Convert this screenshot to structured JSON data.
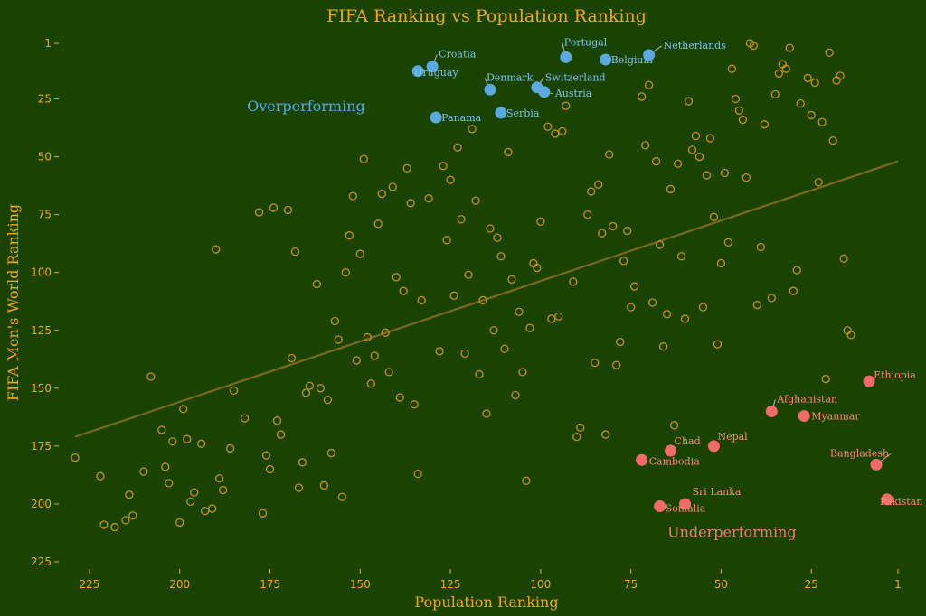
{
  "chart_data": {
    "type": "scatter",
    "title": "FIFA Ranking vs Population Ranking",
    "xlabel": "Population Ranking",
    "ylabel": "FIFA Men's World Ranking",
    "xlim": [
      234,
      -1
    ],
    "ylim": [
      -2,
      228
    ],
    "x_ticks": [
      225,
      200,
      175,
      150,
      125,
      100,
      75,
      50,
      25,
      1
    ],
    "y_ticks": [
      1,
      25,
      50,
      75,
      100,
      125,
      150,
      175,
      200,
      225
    ],
    "trendline": [
      [
        229,
        171
      ],
      [
        1,
        52
      ]
    ],
    "annotations": [
      {
        "text": "Overperforming",
        "x": 165,
        "y": 28,
        "group": "over"
      },
      {
        "text": "Underperforming",
        "x": 47,
        "y": 212,
        "group": "under"
      }
    ],
    "highlighted": [
      {
        "name": "Croatia",
        "x": 130,
        "y": 11,
        "group": "over"
      },
      {
        "name": "Uruguay",
        "x": 134,
        "y": 13,
        "group": "over"
      },
      {
        "name": "Portugal",
        "x": 93,
        "y": 7,
        "group": "over"
      },
      {
        "name": "Belgium",
        "x": 82,
        "y": 8,
        "group": "over"
      },
      {
        "name": "Netherlands",
        "x": 70,
        "y": 6,
        "group": "over"
      },
      {
        "name": "Denmark",
        "x": 114,
        "y": 21,
        "group": "over"
      },
      {
        "name": "Switzerland",
        "x": 101,
        "y": 20,
        "group": "over"
      },
      {
        "name": "Austria",
        "x": 99,
        "y": 22,
        "group": "over"
      },
      {
        "name": "Serbia",
        "x": 111,
        "y": 31,
        "group": "over"
      },
      {
        "name": "Panama",
        "x": 129,
        "y": 33,
        "group": "over"
      },
      {
        "name": "Ethiopia",
        "x": 9,
        "y": 147,
        "group": "under"
      },
      {
        "name": "Afghanistan",
        "x": 36,
        "y": 160,
        "group": "under"
      },
      {
        "name": "Myanmar",
        "x": 27,
        "y": 162,
        "group": "under"
      },
      {
        "name": "Nepal",
        "x": 52,
        "y": 175,
        "group": "under"
      },
      {
        "name": "Chad",
        "x": 64,
        "y": 177,
        "group": "under"
      },
      {
        "name": "Cambodia",
        "x": 72,
        "y": 181,
        "group": "under"
      },
      {
        "name": "Bangladesh",
        "x": 7,
        "y": 183,
        "group": "under"
      },
      {
        "name": "Sri Lanka",
        "x": 60,
        "y": 200,
        "group": "under"
      },
      {
        "name": "Somalia",
        "x": 67,
        "y": 201,
        "group": "under"
      },
      {
        "name": "Pakistan",
        "x": 4,
        "y": 198,
        "group": "under"
      }
    ],
    "points": [
      [
        229,
        180
      ],
      [
        222,
        188
      ],
      [
        221,
        209
      ],
      [
        218,
        210
      ],
      [
        215,
        207
      ],
      [
        214,
        196
      ],
      [
        213,
        205
      ],
      [
        210,
        186
      ],
      [
        208,
        145
      ],
      [
        205,
        168
      ],
      [
        204,
        184
      ],
      [
        203,
        191
      ],
      [
        202,
        173
      ],
      [
        200,
        208
      ],
      [
        199,
        159
      ],
      [
        198,
        172
      ],
      [
        197,
        199
      ],
      [
        196,
        195
      ],
      [
        194,
        174
      ],
      [
        193,
        203
      ],
      [
        191,
        202
      ],
      [
        190,
        90
      ],
      [
        189,
        189
      ],
      [
        188,
        194
      ],
      [
        186,
        176
      ],
      [
        185,
        151
      ],
      [
        182,
        163
      ],
      [
        178,
        74
      ],
      [
        177,
        204
      ],
      [
        176,
        179
      ],
      [
        175,
        185
      ],
      [
        174,
        72
      ],
      [
        173,
        164
      ],
      [
        172,
        170
      ],
      [
        170,
        73
      ],
      [
        169,
        137
      ],
      [
        168,
        91
      ],
      [
        167,
        193
      ],
      [
        166,
        182
      ],
      [
        165,
        152
      ],
      [
        164,
        149
      ],
      [
        162,
        105
      ],
      [
        161,
        150
      ],
      [
        160,
        192
      ],
      [
        159,
        155
      ],
      [
        158,
        178
      ],
      [
        157,
        121
      ],
      [
        156,
        129
      ],
      [
        155,
        197
      ],
      [
        154,
        100
      ],
      [
        153,
        84
      ],
      [
        152,
        67
      ],
      [
        151,
        138
      ],
      [
        150,
        92
      ],
      [
        149,
        51
      ],
      [
        148,
        128
      ],
      [
        147,
        148
      ],
      [
        146,
        136
      ],
      [
        145,
        79
      ],
      [
        144,
        66
      ],
      [
        143,
        126
      ],
      [
        142,
        143
      ],
      [
        141,
        63
      ],
      [
        140,
        102
      ],
      [
        139,
        154
      ],
      [
        138,
        108
      ],
      [
        137,
        55
      ],
      [
        136,
        70
      ],
      [
        135,
        157
      ],
      [
        134,
        187
      ],
      [
        133,
        112
      ],
      [
        131,
        68
      ],
      [
        128,
        134
      ],
      [
        127,
        54
      ],
      [
        126,
        86
      ],
      [
        125,
        60
      ],
      [
        124,
        110
      ],
      [
        123,
        46
      ],
      [
        122,
        77
      ],
      [
        121,
        135
      ],
      [
        120,
        101
      ],
      [
        119,
        38
      ],
      [
        118,
        69
      ],
      [
        117,
        144
      ],
      [
        116,
        112
      ],
      [
        115,
        161
      ],
      [
        114,
        81
      ],
      [
        113,
        125
      ],
      [
        112,
        85
      ],
      [
        111,
        93
      ],
      [
        110,
        133
      ],
      [
        109,
        48
      ],
      [
        108,
        103
      ],
      [
        107,
        153
      ],
      [
        106,
        117
      ],
      [
        105,
        143
      ],
      [
        104,
        190
      ],
      [
        103,
        124
      ],
      [
        102,
        96
      ],
      [
        101,
        98
      ],
      [
        100,
        78
      ],
      [
        98,
        37
      ],
      [
        97,
        120
      ],
      [
        96,
        40
      ],
      [
        95,
        119
      ],
      [
        94,
        39
      ],
      [
        93,
        28
      ],
      [
        91,
        104
      ],
      [
        90,
        171
      ],
      [
        89,
        167
      ],
      [
        87,
        75
      ],
      [
        86,
        65
      ],
      [
        85,
        139
      ],
      [
        84,
        62
      ],
      [
        83,
        83
      ],
      [
        82,
        170
      ],
      [
        81,
        49
      ],
      [
        80,
        80
      ],
      [
        79,
        140
      ],
      [
        78,
        130
      ],
      [
        77,
        95
      ],
      [
        76,
        82
      ],
      [
        75,
        115
      ],
      [
        74,
        106
      ],
      [
        72,
        24
      ],
      [
        71,
        45
      ],
      [
        70,
        19
      ],
      [
        69,
        113
      ],
      [
        68,
        52
      ],
      [
        67,
        88
      ],
      [
        66,
        132
      ],
      [
        65,
        118
      ],
      [
        64,
        64
      ],
      [
        63,
        166
      ],
      [
        62,
        53
      ],
      [
        61,
        93
      ],
      [
        60,
        120
      ],
      [
        59,
        26
      ],
      [
        58,
        47
      ],
      [
        57,
        41
      ],
      [
        56,
        50
      ],
      [
        55,
        115
      ],
      [
        54,
        58
      ],
      [
        53,
        42
      ],
      [
        52,
        76
      ],
      [
        51,
        131
      ],
      [
        50,
        96
      ],
      [
        49,
        57
      ],
      [
        48,
        87
      ],
      [
        47,
        12
      ],
      [
        46,
        25
      ],
      [
        45,
        30
      ],
      [
        44,
        34
      ],
      [
        43,
        59
      ],
      [
        42,
        1
      ],
      [
        41,
        2
      ],
      [
        40,
        114
      ],
      [
        39,
        89
      ],
      [
        38,
        36
      ],
      [
        36,
        111
      ],
      [
        35,
        23
      ],
      [
        34,
        14
      ],
      [
        33,
        10
      ],
      [
        32,
        12
      ],
      [
        31,
        3
      ],
      [
        30,
        108
      ],
      [
        29,
        99
      ],
      [
        28,
        27
      ],
      [
        26,
        16
      ],
      [
        25,
        32
      ],
      [
        24,
        18
      ],
      [
        23,
        61
      ],
      [
        22,
        35
      ],
      [
        21,
        146
      ],
      [
        20,
        5
      ],
      [
        19,
        43
      ],
      [
        18,
        17
      ],
      [
        17,
        15
      ],
      [
        16,
        94
      ],
      [
        15,
        125
      ],
      [
        14,
        127
      ]
    ]
  }
}
